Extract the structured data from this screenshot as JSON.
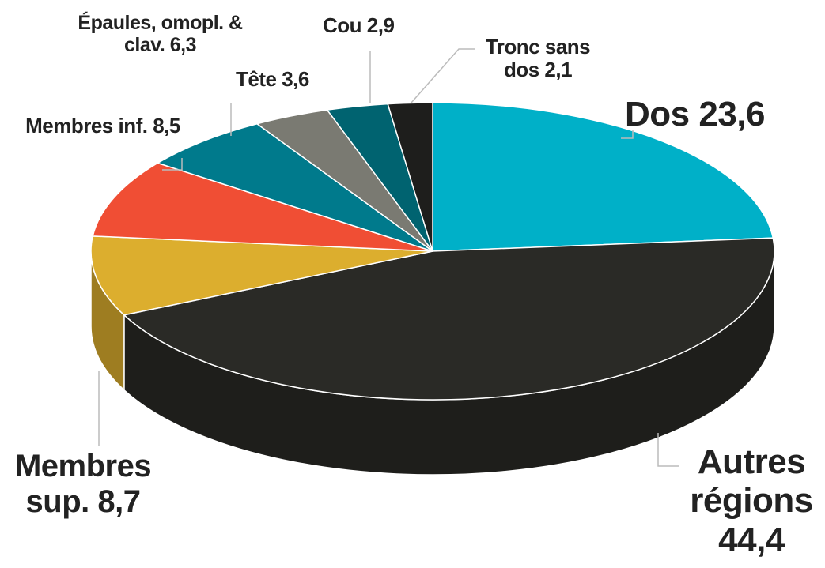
{
  "chart_data": {
    "type": "pie",
    "categories": [
      "Dos",
      "Autres régions",
      "Membres sup.",
      "Membres inf.",
      "Épaules, omopl. & clav.",
      "Tête",
      "Cou",
      "Tronc sans dos"
    ],
    "values": [
      23.6,
      44.4,
      8.7,
      8.5,
      6.3,
      3.6,
      2.9,
      2.1
    ],
    "value_labels": [
      "23,6",
      "44,4",
      "8,7",
      "8,5",
      "6,3",
      "3,6",
      "2,9",
      "2,1"
    ],
    "colors": [
      "#00b0c8",
      "#2a2a26",
      "#dcae2e",
      "#f04e34",
      "#007a8c",
      "#7a7a72",
      "#006370",
      "#1e1e1c"
    ]
  }
}
